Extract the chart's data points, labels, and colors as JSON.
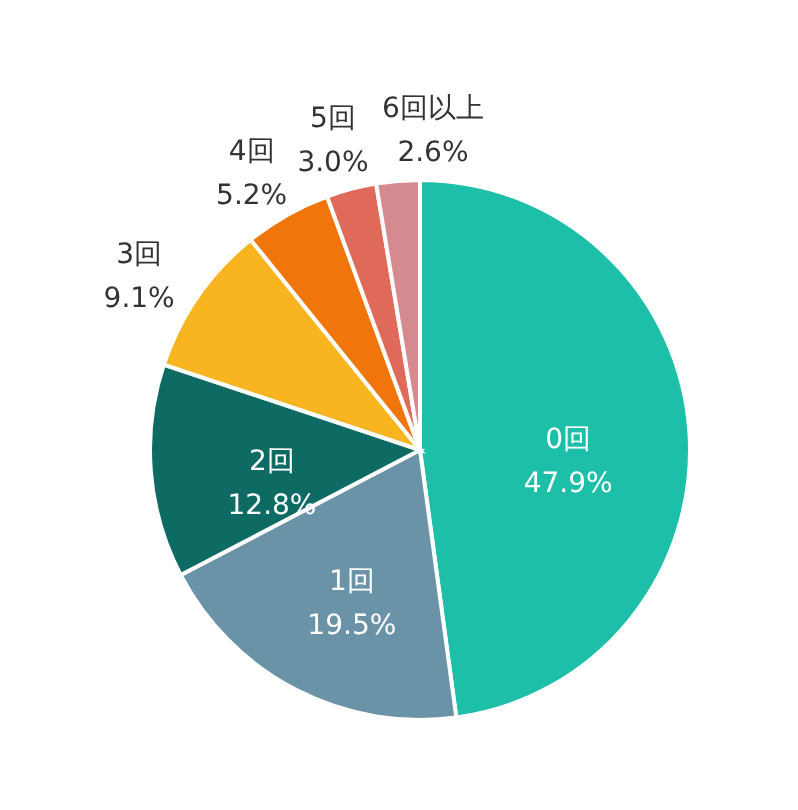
{
  "chart_data": {
    "type": "pie",
    "categories": [
      "0回",
      "1回",
      "2回",
      "3回",
      "4回",
      "5回",
      "6回以上"
    ],
    "values": [
      47.9,
      19.5,
      12.8,
      9.1,
      5.2,
      3.0,
      2.6
    ],
    "value_labels": [
      "47.9%",
      "19.5%",
      "12.8%",
      "9.1%",
      "5.2%",
      "3.0%",
      "2.6%"
    ],
    "colors": [
      "#1dbfa8",
      "#6a93a8",
      "#0d6b63",
      "#f9b520",
      "#f0760c",
      "#e06a59",
      "#d58a90"
    ]
  }
}
